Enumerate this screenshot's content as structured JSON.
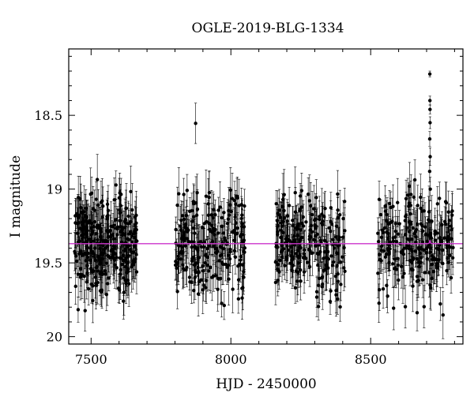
{
  "chart_data": {
    "type": "scatter",
    "title": "OGLE-2019-BLG-1334",
    "xlabel": "HJD - 2450000",
    "ylabel": "I magnitude",
    "xlim": [
      7420,
      8830
    ],
    "ylim": [
      20.05,
      18.05
    ],
    "y_inverted": true,
    "grid": false,
    "legend": "none",
    "xticks": [
      "7500",
      "8000",
      "8500"
    ],
    "yticks": [
      "18.5",
      "19",
      "19.5",
      "20"
    ],
    "seasons": [
      {
        "start": 7440,
        "end": 7665
      },
      {
        "start": 7800,
        "end": 8050
      },
      {
        "start": 8160,
        "end": 8410
      },
      {
        "start": 8525,
        "end": 8795
      }
    ],
    "baseline_mag": 19.37,
    "scatter_sigma": 0.17,
    "typical_error": 0.12,
    "peak": {
      "t0": 8712,
      "mag": 18.22
    },
    "colors": {
      "points": "#000000",
      "model": "#cc33cc"
    }
  }
}
